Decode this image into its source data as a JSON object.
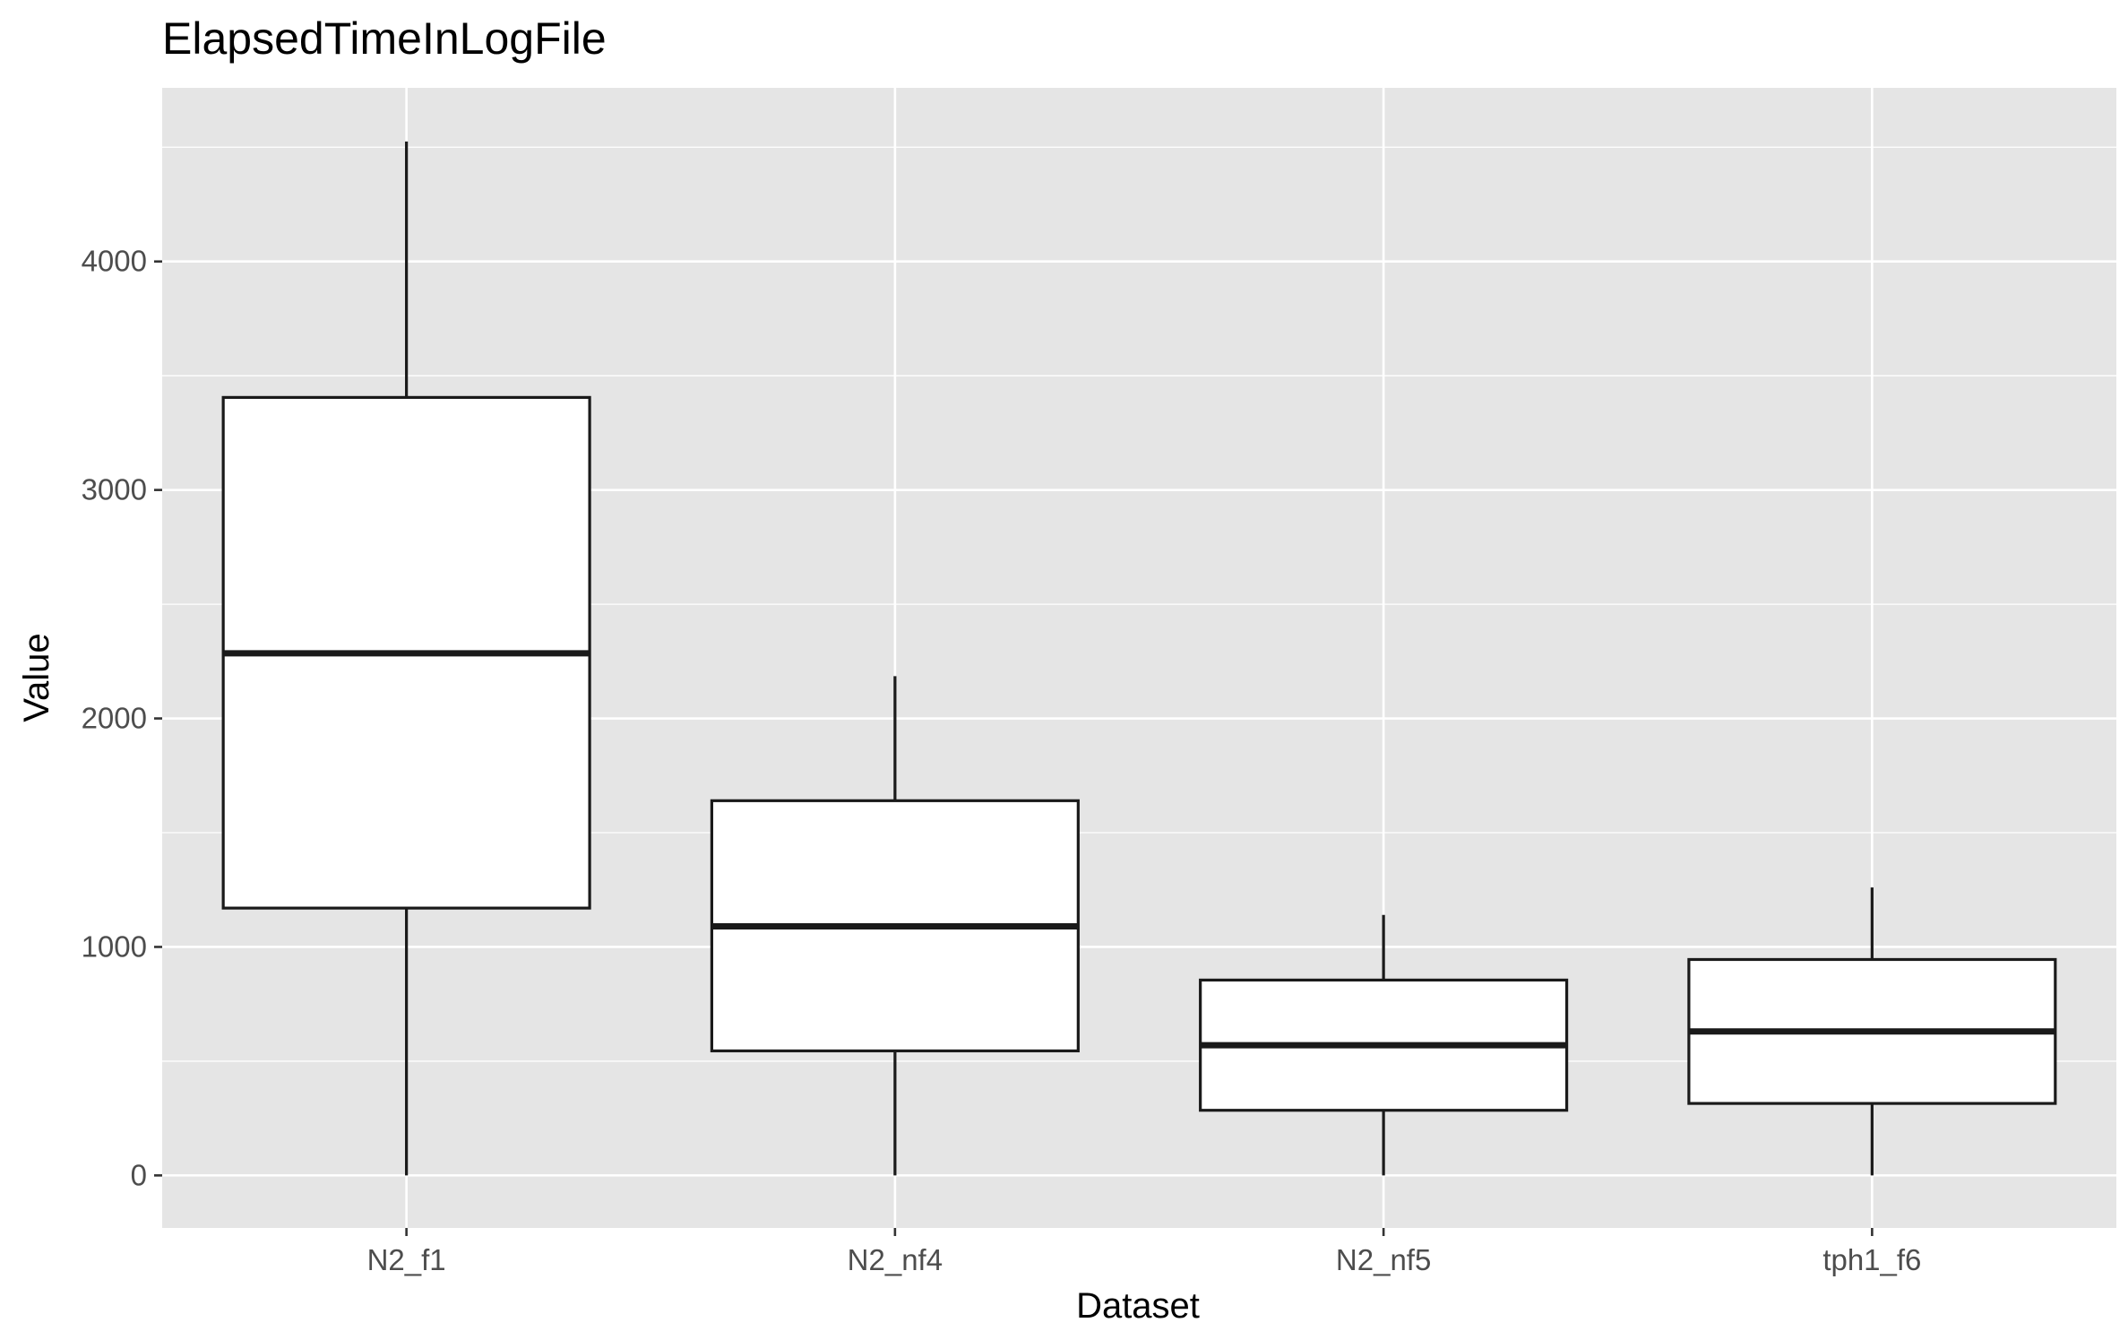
{
  "chart_data": {
    "type": "boxplot",
    "title": "ElapsedTimeInLogFile",
    "xlabel": "Dataset",
    "ylabel": "Value",
    "categories": [
      "N2_f1",
      "N2_nf4",
      "N2_nf5",
      "tph1_f6"
    ],
    "boxes": [
      {
        "category": "N2_f1",
        "whisker_low": 0,
        "q1": 1170,
        "median": 2285,
        "q3": 3405,
        "whisker_high": 4525
      },
      {
        "category": "N2_nf4",
        "whisker_low": 0,
        "q1": 545,
        "median": 1090,
        "q3": 1640,
        "whisker_high": 2185
      },
      {
        "category": "N2_nf5",
        "whisker_low": 0,
        "q1": 285,
        "median": 570,
        "q3": 855,
        "whisker_high": 1140
      },
      {
        "category": "tph1_f6",
        "whisker_low": 0,
        "q1": 315,
        "median": 630,
        "q3": 945,
        "whisker_high": 1260
      }
    ],
    "ylim": [
      -230,
      4760
    ],
    "y_ticks": [
      0,
      1000,
      2000,
      3000,
      4000
    ],
    "y_tick_labels": [
      "0",
      "1000",
      "2000",
      "3000",
      "4000"
    ],
    "grid": true,
    "legend": "none",
    "colors": {
      "panel_background": "#e5e5e5",
      "grid_line": "#ffffff",
      "box_fill": "#ffffff",
      "box_stroke": "#1a1a1a",
      "tick_label": "#4d4d4d",
      "tick_mark": "#333333",
      "text": "#000000"
    }
  }
}
